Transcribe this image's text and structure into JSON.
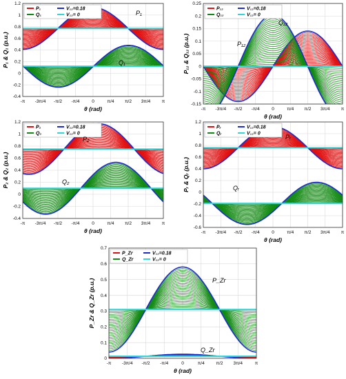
{
  "chart_data": [
    {
      "type": "line",
      "xlabel": "θ (rad)",
      "ylabel": "P₁ & Q₁ (p.u.)",
      "xlim": [
        -3.1416,
        3.1416
      ],
      "ylim": [
        -0.4,
        1.2
      ],
      "xticks": [
        "-π",
        "-3π/4",
        "-π/2",
        "-π/4",
        "0",
        "π/4",
        "π/2",
        "3π/4",
        "π"
      ],
      "yticks": [
        "-0.4",
        "-0.2",
        "0",
        "0.2",
        "0.4",
        "0.6",
        "0.8",
        "1",
        "1.2"
      ],
      "legend": [
        "P₁",
        "Q₁",
        "V₁₂=0.18",
        "V₁₂= 0"
      ],
      "legend_location": "top-left",
      "annotations": [
        "P₁",
        "Q₁"
      ],
      "grid": true,
      "series": [
        {
          "name": "P₁",
          "base": 0.77,
          "amp": 0.36,
          "phase": 1.571,
          "fill": "red"
        },
        {
          "name": "Q₁",
          "base": 0.12,
          "amp": 0.36,
          "phase": -0.02,
          "fill": "green"
        }
      ]
    },
    {
      "type": "line",
      "xlabel": "θ (rad)",
      "ylabel": "P₁₂ & Q₁₂ (p.u.)",
      "xlim": [
        -3.1416,
        3.1416
      ],
      "ylim": [
        -0.15,
        0.25
      ],
      "xticks": [
        "-π",
        "-3π/4",
        "-π/2",
        "-π/4",
        "0",
        "π/4",
        "π/2",
        "3π/4",
        "π"
      ],
      "yticks": [
        "-0.15",
        "-0.1",
        "-0.05",
        "0",
        "0.05",
        "0.1",
        "0.15",
        "0.2",
        "0.25"
      ],
      "legend": [
        "P₁₂",
        "Q₁₂",
        "V₁₂=0.18",
        "V₁₂= 0"
      ],
      "legend_location": "top-left",
      "annotations": [
        "P₁₂",
        "Q₁₂"
      ],
      "grid": true,
      "series": [
        {
          "name": "P₁₂",
          "base": 0.0,
          "amp": 0.14,
          "phase": 0.0,
          "fill": "red"
        },
        {
          "name": "Q₁₂",
          "base": 0.0,
          "amp": 0.205,
          "phase": 1.571,
          "fill": "green"
        }
      ]
    },
    {
      "type": "line",
      "xlabel": "θ (rad)",
      "ylabel": "P₂ & Q₂ (p.u.)",
      "xlim": [
        -3.1416,
        3.1416
      ],
      "ylim": [
        -0.4,
        1.2
      ],
      "xticks": [
        "-π",
        "-3π/4",
        "-π/2",
        "-π/4",
        "0",
        "π/4",
        "π/2",
        "3π/4",
        "π"
      ],
      "yticks": [
        "-0.4",
        "-0.2",
        "0",
        "0.2",
        "0.4",
        "0.6",
        "0.8",
        "1",
        "1.2"
      ],
      "legend": [
        "P₂",
        "Q₂",
        "V₁₂=0.18",
        "V₁₂= 0"
      ],
      "legend_location": "top-left",
      "annotations": [
        "P₂",
        "Q₂"
      ],
      "grid": true,
      "series": [
        {
          "name": "P₂",
          "base": 0.75,
          "amp": 0.42,
          "phase": 1.3,
          "fill": "red"
        },
        {
          "name": "Q₂",
          "base": 0.1,
          "amp": 0.43,
          "phase": 0.55,
          "fill": "green"
        }
      ]
    },
    {
      "type": "line",
      "xlabel": "θ (rad)",
      "ylabel": "Pᵣ & Qᵣ (p.u.)",
      "xlim": [
        -3.1416,
        3.1416
      ],
      "ylim": [
        -0.6,
        1.2
      ],
      "xticks": [
        "-π",
        "-3π/4",
        "-π/2",
        "-π/4",
        "0",
        "π/4",
        "π/2",
        "3π/4",
        "π"
      ],
      "yticks": [
        "-0.6",
        "-0.4",
        "-0.2",
        "0",
        "0.2",
        "0.4",
        "0.6",
        "0.8",
        "1",
        "1.2"
      ],
      "legend": [
        "Pᵣ",
        "Qᵣ",
        "V₁₂=0.18",
        "V₁₂= 0"
      ],
      "legend_location": "top-left",
      "annotations": [
        "Pᵣ",
        "Qᵣ"
      ],
      "grid": true,
      "series": [
        {
          "name": "Pᵣ",
          "base": 0.76,
          "amp": 0.36,
          "phase": 1.571,
          "fill": "red"
        },
        {
          "name": "Qᵣ",
          "base": -0.19,
          "amp": 0.36,
          "phase": -0.4,
          "fill": "green"
        }
      ]
    },
    {
      "type": "line",
      "xlabel": "θ (rad)",
      "ylabel": "P_Zr & Q_Zr (p.u.)",
      "xlim": [
        -3.1416,
        3.1416
      ],
      "ylim": [
        0,
        0.7
      ],
      "xticks": [
        "-π",
        "-3π/4",
        "-π/2",
        "-π/4",
        "0",
        "π/4",
        "π/2",
        "3π/4",
        "π"
      ],
      "yticks": [
        "0",
        "0.1",
        "0.2",
        "0.3",
        "0.4",
        "0.5",
        "0.6",
        "0.7"
      ],
      "legend": [
        "P_Zr",
        "Q_Zr",
        "V₁₂=0.18",
        "V₁₂= 0"
      ],
      "legend_location": "top-left",
      "annotations": [
        "P_Zr",
        "Q_Zr"
      ],
      "grid": true,
      "series": [
        {
          "name": "Q_Zr",
          "base": 0.31,
          "amp": 0.27,
          "min": 0.09,
          "max": 0.65,
          "phase": 1.571,
          "fill": "green"
        },
        {
          "name": "P_Zr",
          "base": 0.013,
          "amp": 0.013,
          "phase": 1.571,
          "fill": "red"
        }
      ]
    }
  ],
  "style": {
    "envelope_color": "#1a2bd6",
    "baseline_color": "#2fd8d8",
    "red": "#e01010",
    "green": "#128a12"
  }
}
